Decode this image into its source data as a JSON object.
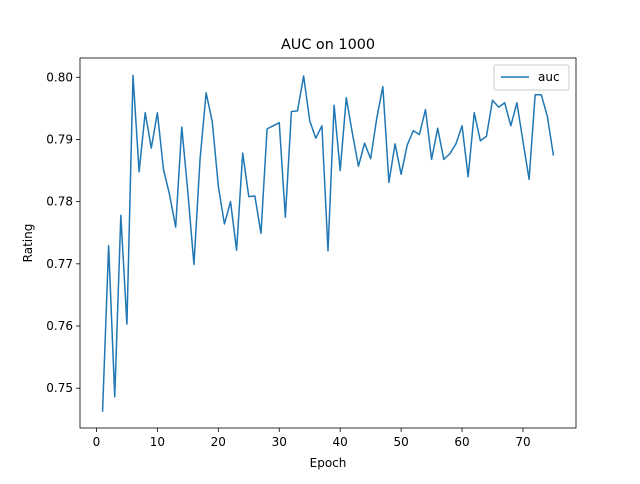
{
  "chart_data": {
    "type": "line",
    "title": "AUC on 1000",
    "xlabel": "Epoch",
    "ylabel": "Rating",
    "xlim": [
      -2.7,
      78.7
    ],
    "ylim": [
      0.7436,
      0.8031
    ],
    "grid": false,
    "legend_position": "top-right",
    "x_ticks": [
      0,
      10,
      20,
      30,
      40,
      50,
      60,
      70
    ],
    "y_ticks": [
      0.75,
      0.76,
      0.77,
      0.78,
      0.79,
      0.8
    ],
    "x_tick_labels": [
      "0",
      "10",
      "20",
      "30",
      "40",
      "50",
      "60",
      "70"
    ],
    "y_tick_labels": [
      "0.75",
      "0.76",
      "0.77",
      "0.78",
      "0.79",
      "0.80"
    ],
    "series": [
      {
        "name": "auc",
        "color": "#1f77b4",
        "x": [
          1,
          2,
          3,
          4,
          5,
          6,
          7,
          8,
          9,
          10,
          11,
          12,
          13,
          14,
          15,
          16,
          17,
          18,
          19,
          20,
          21,
          22,
          23,
          24,
          25,
          26,
          27,
          28,
          29,
          30,
          31,
          32,
          33,
          34,
          35,
          36,
          37,
          38,
          39,
          40,
          41,
          42,
          43,
          44,
          45,
          46,
          47,
          48,
          49,
          50,
          51,
          52,
          53,
          54,
          55,
          56,
          57,
          58,
          59,
          60,
          61,
          62,
          63,
          64,
          65,
          66,
          67,
          68,
          69,
          70,
          71,
          72,
          73,
          74,
          75
        ],
        "values": [
          0.7462,
          0.7729,
          0.7486,
          0.7778,
          0.7603,
          0.8003,
          0.7848,
          0.7943,
          0.7886,
          0.7943,
          0.7852,
          0.7811,
          0.7759,
          0.792,
          0.7815,
          0.7699,
          0.7868,
          0.7975,
          0.7929,
          0.7825,
          0.7764,
          0.78,
          0.7722,
          0.7878,
          0.7808,
          0.7809,
          0.7749,
          0.7917,
          0.7922,
          0.7927,
          0.7775,
          0.7945,
          0.7946,
          0.8002,
          0.793,
          0.7902,
          0.7922,
          0.7721,
          0.7955,
          0.785,
          0.7967,
          0.791,
          0.7857,
          0.7894,
          0.7869,
          0.7934,
          0.7985,
          0.7831,
          0.7893,
          0.7844,
          0.7891,
          0.7914,
          0.7908,
          0.7948,
          0.7868,
          0.7918,
          0.7868,
          0.7877,
          0.7893,
          0.7922,
          0.784,
          0.7943,
          0.7898,
          0.7905,
          0.7963,
          0.7952,
          0.7959,
          0.7922,
          0.7959,
          0.7897,
          0.7836,
          0.7972,
          0.7972,
          0.7937,
          0.7874
        ]
      }
    ]
  }
}
